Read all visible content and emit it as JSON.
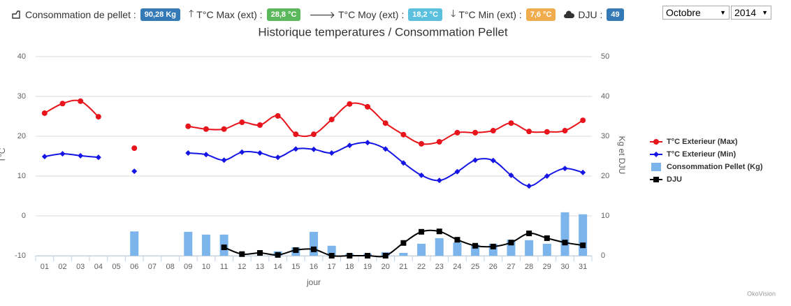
{
  "header": {
    "pellet_label": "Consommation de pellet :",
    "pellet_value": "90,28 Kg",
    "max_label": "T°C Max (ext) :",
    "max_value": "28,8 °C",
    "moy_label": "T°C Moy (ext) :",
    "moy_value": "18,2 °C",
    "min_label": "T°C Min (ext) :",
    "min_value": "7,6 °C",
    "dju_label": "DJU :",
    "dju_value": "49",
    "month": "Octobre",
    "year": "2014"
  },
  "chart_data": {
    "type": "combo",
    "title": "Historique temperatures / Consommation Pellet",
    "y_label": "T°C",
    "y2_label": "Kg et DJU",
    "x_label": "jour",
    "credit": "OkoVision",
    "categories": [
      "01",
      "02",
      "03",
      "04",
      "05",
      "06",
      "07",
      "08",
      "09",
      "10",
      "11",
      "12",
      "13",
      "14",
      "15",
      "16",
      "17",
      "18",
      "19",
      "20",
      "21",
      "22",
      "23",
      "24",
      "25",
      "26",
      "27",
      "28",
      "29",
      "30",
      "31"
    ],
    "ylim": [
      -10,
      40
    ],
    "yticks": [
      -10,
      0,
      10,
      20,
      30,
      40
    ],
    "y2lim": [
      0,
      50
    ],
    "y2ticks": [
      0,
      10,
      20,
      30,
      40,
      50
    ],
    "grid": true,
    "legend": "right",
    "series": [
      {
        "name": "T°C Exterieur (Max)",
        "type": "line",
        "marker": "circle",
        "color": "#e8141c",
        "values": [
          25.8,
          28.2,
          28.8,
          24.9,
          null,
          17.0,
          null,
          null,
          22.5,
          21.8,
          21.8,
          23.5,
          22.8,
          25.1,
          20.5,
          20.5,
          24.2,
          28.1,
          27.4,
          23.3,
          20.4,
          18.1,
          18.6,
          20.9,
          20.9,
          21.4,
          23.3,
          21.2,
          21.1,
          21.4,
          24.0
        ]
      },
      {
        "name": "T°C Exterieur (Min)",
        "type": "line",
        "marker": "diamond",
        "color": "#1515e6",
        "values": [
          14.9,
          15.6,
          15.1,
          14.7,
          null,
          11.2,
          null,
          null,
          15.8,
          15.4,
          14.0,
          16.0,
          15.8,
          14.7,
          16.8,
          16.7,
          15.8,
          17.7,
          18.4,
          16.8,
          13.3,
          10.2,
          8.9,
          11.1,
          14.0,
          13.9,
          10.2,
          7.5,
          10.0,
          11.9,
          10.9
        ]
      },
      {
        "name": "Consommation Pellet (Kg)",
        "type": "bar",
        "axis": "y2",
        "color": "#7cb5ec",
        "values": [
          null,
          null,
          null,
          null,
          null,
          6.1,
          null,
          null,
          6.0,
          5.3,
          5.3,
          null,
          null,
          1.1,
          2.1,
          6.0,
          2.5,
          0.5,
          0.5,
          0.9,
          0.7,
          3.0,
          4.4,
          3.3,
          2.8,
          3.0,
          4.0,
          3.9,
          3.0,
          10.9,
          10.4
        ]
      },
      {
        "name": "DJU",
        "type": "line",
        "axis": "y2",
        "marker": "square",
        "color": "#000000",
        "values": [
          null,
          null,
          null,
          null,
          null,
          null,
          null,
          null,
          null,
          null,
          2.1,
          0.4,
          0.7,
          0.2,
          1.4,
          1.6,
          0,
          0,
          0,
          0,
          3.2,
          6.0,
          6.1,
          4.0,
          2.5,
          2.3,
          3.3,
          5.6,
          4.4,
          3.3,
          2.6
        ]
      }
    ]
  }
}
